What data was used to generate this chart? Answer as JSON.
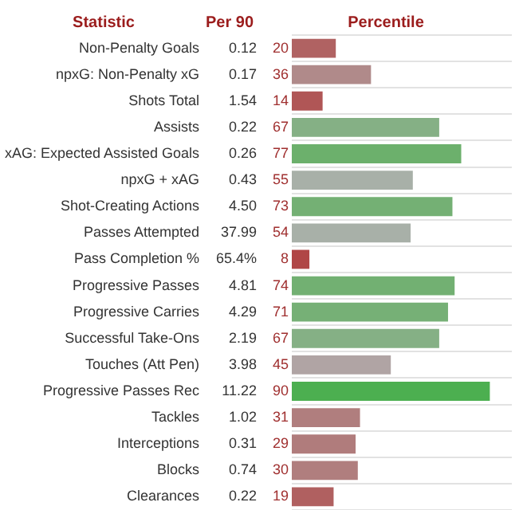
{
  "chart_data": {
    "type": "bar",
    "orientation": "horizontal",
    "ylabel": "Statistic",
    "xlabel": "Percentile",
    "categories": [
      "Non-Penalty Goals",
      "npxG: Non-Penalty xG",
      "Shots Total",
      "Assists",
      "xAG: Expected Assisted Goals",
      "npxG + xAG",
      "Shot-Creating Actions",
      "Passes Attempted",
      "Pass Completion %",
      "Progressive Passes",
      "Progressive Carries",
      "Successful Take-Ons",
      "Touches (Att Pen)",
      "Progressive Passes Rec",
      "Tackles",
      "Interceptions",
      "Blocks",
      "Clearances"
    ],
    "values": [
      20,
      36,
      14,
      67,
      77,
      55,
      73,
      54,
      8,
      74,
      71,
      67,
      45,
      90,
      31,
      29,
      30,
      19
    ],
    "colors": [
      "#b06262",
      "#b08a8a",
      "#b05656",
      "#85b085",
      "#6cb06c",
      "#a8b0a8",
      "#74b074",
      "#a8b0a8",
      "#b04646",
      "#72b072",
      "#76b076",
      "#85b085",
      "#b0a4a4",
      "#4caf50",
      "#b07e7e",
      "#b07c7c",
      "#b07e7e",
      "#b06060"
    ],
    "xlim": [
      0,
      100
    ],
    "tick_labels": "y",
    "grid": "y",
    "data_labels": true,
    "annotations": [
      "Per 90",
      "0.12",
      "0.17",
      "1.54",
      "0.22",
      "0.26",
      "0.43",
      "4.50",
      "37.99",
      "65.4%",
      "4.81",
      "4.29",
      "2.19",
      "3.98",
      "11.22",
      "1.02",
      "0.31",
      "0.74",
      "0.22"
    ]
  }
}
